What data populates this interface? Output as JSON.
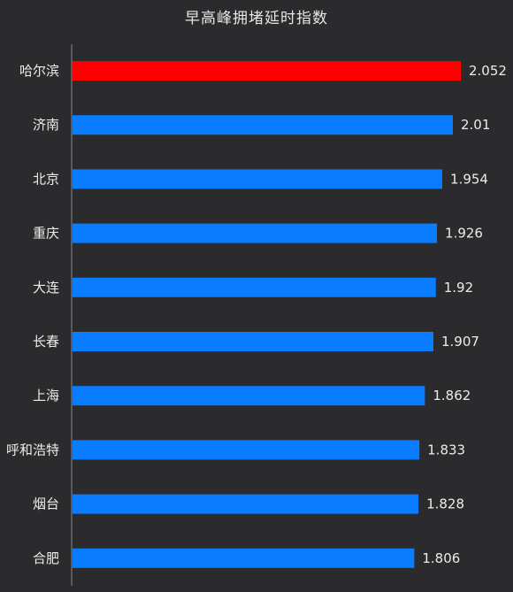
{
  "chart_data": {
    "type": "bar",
    "orientation": "horizontal",
    "title": "早高峰拥堵延时指数",
    "categories": [
      "哈尔滨",
      "济南",
      "北京",
      "重庆",
      "大连",
      "长春",
      "上海",
      "呼和浩特",
      "烟台",
      "合肥"
    ],
    "values": [
      2.052,
      2.01,
      1.954,
      1.926,
      1.92,
      1.907,
      1.862,
      1.833,
      1.828,
      1.806
    ],
    "value_labels": [
      "2.052",
      "2.01",
      "1.954",
      "1.926",
      "1.92",
      "1.907",
      "1.862",
      "1.833",
      "1.828",
      "1.806"
    ],
    "highlight_index": 0,
    "colors": {
      "highlight": "#ff0000",
      "bar": "#0a7cff",
      "background": "#2b2b2d",
      "axis": "#8a8a8a",
      "text": "#ececec"
    },
    "xlim": [
      0,
      2.052
    ],
    "grid": false,
    "legend": "none"
  }
}
